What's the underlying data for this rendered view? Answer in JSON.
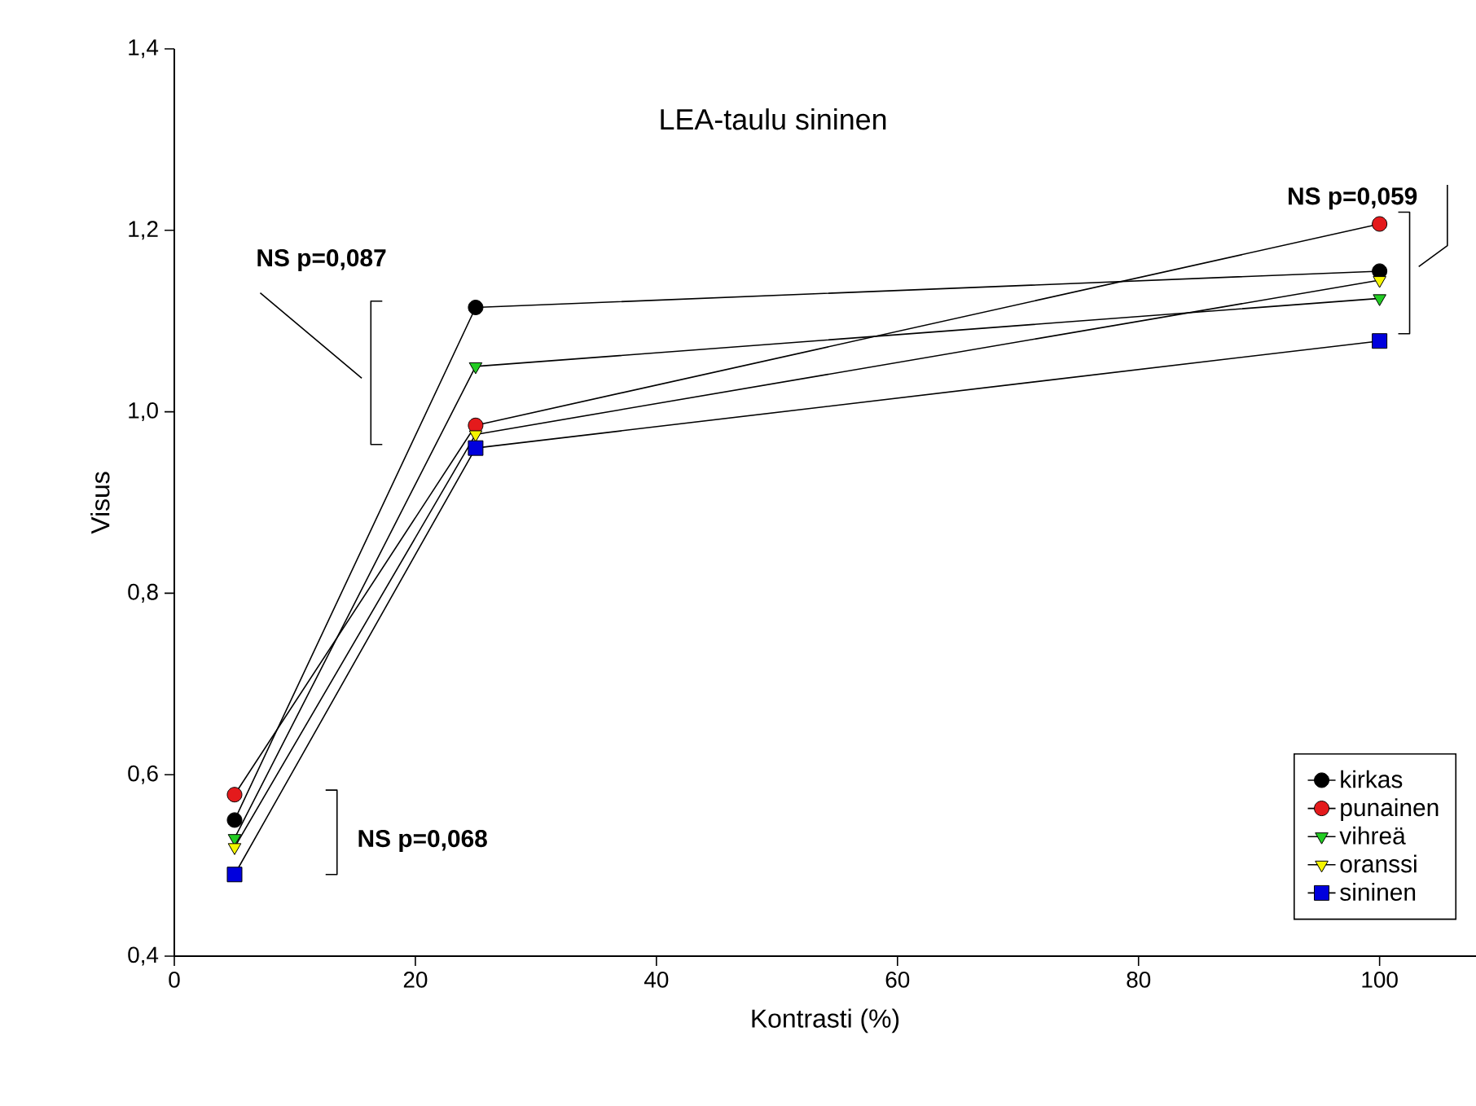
{
  "chart_data": {
    "type": "line",
    "title": "LEA-taulu sininen",
    "xlabel": "Kontrasti (%)",
    "ylabel": "Visus",
    "xlim": [
      0,
      108
    ],
    "xticks": [
      0,
      20,
      40,
      60,
      80,
      100
    ],
    "ylim": [
      0.4,
      1.4
    ],
    "yticks": [
      {
        "value": 0.4,
        "label": "0,4"
      },
      {
        "value": 0.6,
        "label": "0,6"
      },
      {
        "value": 0.8,
        "label": "0,8"
      },
      {
        "value": 1.0,
        "label": "1,0"
      },
      {
        "value": 1.2,
        "label": "1,2"
      },
      {
        "value": 1.4,
        "label": "1,4"
      }
    ],
    "x": [
      5,
      25,
      100
    ],
    "series": [
      {
        "name": "kirkas",
        "color": "#000000",
        "marker": "circle",
        "values": [
          0.55,
          1.115,
          1.155
        ]
      },
      {
        "name": "punainen",
        "color": "#e41a1c",
        "marker": "circle",
        "values": [
          0.578,
          0.985,
          1.207
        ]
      },
      {
        "name": "vihreä",
        "color": "#22cc22",
        "marker": "triangle",
        "values": [
          0.53,
          1.05,
          1.125
        ]
      },
      {
        "name": "oranssi",
        "color": "#f5f500",
        "marker": "triangle",
        "values": [
          0.52,
          0.975,
          1.145
        ]
      },
      {
        "name": "sininen",
        "color": "#0000dd",
        "marker": "square",
        "values": [
          0.49,
          0.96,
          1.078
        ]
      }
    ],
    "annotations": [
      "**NS p=0,087**",
      "**NS p=0,068**",
      "**NS p=0,059**"
    ],
    "grid": false,
    "legend": "bottom right",
    "line_style": "solid"
  }
}
